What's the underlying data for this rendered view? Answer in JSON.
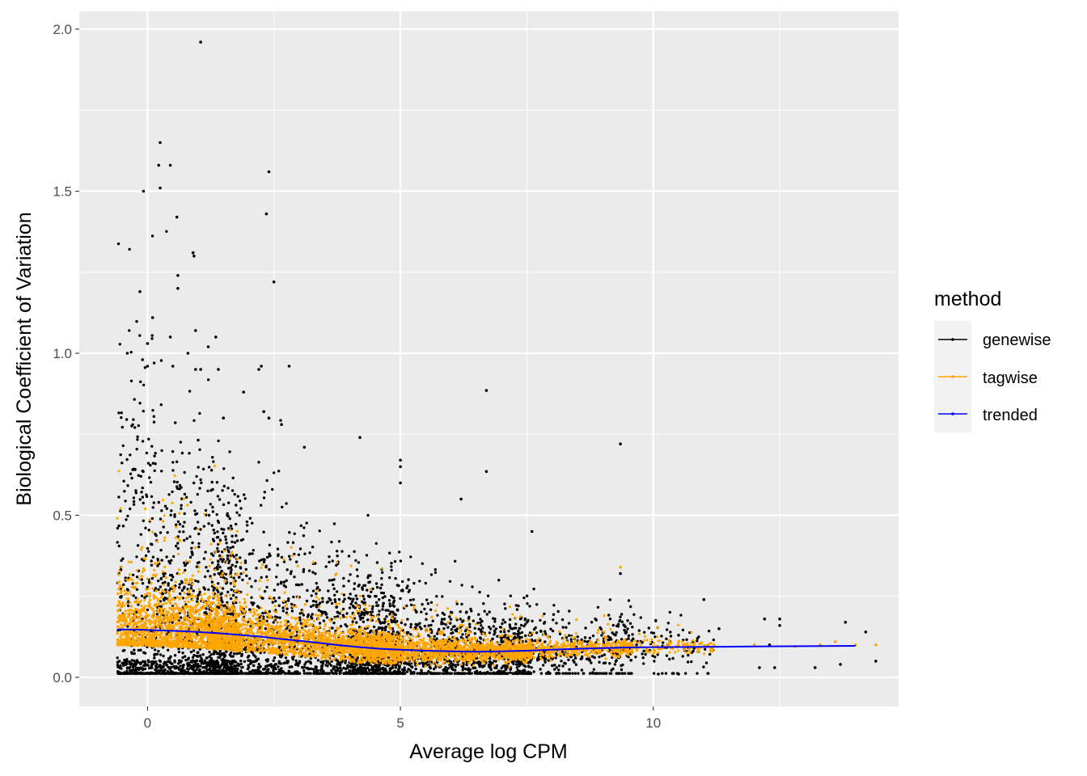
{
  "chart_data": {
    "type": "scatter",
    "title": "",
    "xlabel": "Average log CPM",
    "ylabel": "Biological Coefficient of Variation",
    "xlim": [
      -1.35,
      14.85
    ],
    "ylim": [
      -0.09,
      2.055
    ],
    "x_ticks": [
      0,
      5,
      10
    ],
    "x_tick_labels": [
      "0",
      "5",
      "10"
    ],
    "y_ticks": [
      0.0,
      0.5,
      1.0,
      1.5,
      2.0
    ],
    "y_tick_labels": [
      "0.0",
      "0.5",
      "1.0",
      "1.5",
      "2.0"
    ],
    "grid": true,
    "legend": {
      "title": "method",
      "placement": "right",
      "entries": [
        "genewise",
        "tagwise",
        "trended"
      ]
    },
    "colors": {
      "genewise": "#000000",
      "tagwise": "#FFA500",
      "trended": "#0000FF",
      "panel_background": "#EBEBEB",
      "grid": "#FFFFFF"
    },
    "series": [
      {
        "name": "genewise",
        "kind": "points",
        "note_points": [
          [
            1.05,
            1.96
          ],
          [
            0.25,
            1.65
          ],
          [
            0.22,
            1.58
          ],
          [
            0.45,
            1.58
          ],
          [
            0.25,
            1.51
          ],
          [
            -0.08,
            1.5
          ],
          [
            2.4,
            1.56
          ],
          [
            0.58,
            1.42
          ],
          [
            2.35,
            1.43
          ],
          [
            0.9,
            1.31
          ],
          [
            0.92,
            1.3
          ],
          [
            0.6,
            1.24
          ],
          [
            2.5,
            1.22
          ],
          [
            -0.15,
            1.19
          ],
          [
            0.6,
            1.2
          ],
          [
            0.1,
            1.11
          ],
          [
            0.95,
            1.07
          ],
          [
            1.35,
            1.05
          ],
          [
            0.45,
            1.05
          ],
          [
            0.0,
            1.03
          ],
          [
            -0.4,
            1.0
          ],
          [
            0.8,
            1.0
          ],
          [
            1.2,
            1.02
          ],
          [
            -0.1,
            0.98
          ],
          [
            0.5,
            0.96
          ],
          [
            0.0,
            0.96
          ],
          [
            0.95,
            0.95
          ],
          [
            1.05,
            0.95
          ],
          [
            1.4,
            0.95
          ],
          [
            2.2,
            0.95
          ],
          [
            2.25,
            0.96
          ],
          [
            2.8,
            0.96
          ],
          [
            1.5,
            0.8
          ],
          [
            2.3,
            0.82
          ],
          [
            2.4,
            0.8
          ],
          [
            1.9,
            0.88
          ],
          [
            2.65,
            0.78
          ],
          [
            3.1,
            0.71
          ],
          [
            4.2,
            0.74
          ],
          [
            5.0,
            0.67
          ],
          [
            5.0,
            0.65
          ],
          [
            5.0,
            0.6
          ],
          [
            6.7,
            0.885
          ],
          [
            6.7,
            0.635
          ],
          [
            9.35,
            0.72
          ],
          [
            9.35,
            0.32
          ],
          [
            6.2,
            0.55
          ],
          [
            7.6,
            0.45
          ],
          [
            12.5,
            0.18
          ],
          [
            12.5,
            0.16
          ],
          [
            12.2,
            0.18
          ],
          [
            12.3,
            0.1
          ],
          [
            12.1,
            0.03
          ],
          [
            12.4,
            0.03
          ],
          [
            13.2,
            0.03
          ],
          [
            13.7,
            0.04
          ],
          [
            13.8,
            0.17
          ],
          [
            14.2,
            0.14
          ],
          [
            14.4,
            0.05
          ],
          [
            11.0,
            0.24
          ],
          [
            10.9,
            0.08
          ],
          [
            10.5,
            0.13
          ],
          [
            11.3,
            0.15
          ],
          [
            10.5,
            0.01
          ],
          [
            10.1,
            0.01
          ]
        ]
      },
      {
        "name": "tagwise",
        "kind": "points",
        "note_points": [
          [
            9.35,
            0.34
          ],
          [
            13.6,
            0.11
          ],
          [
            14.0,
            0.1
          ],
          [
            14.4,
            0.1
          ],
          [
            12.8,
            0.095
          ],
          [
            12.0,
            0.1
          ],
          [
            11.2,
            0.1
          ],
          [
            13.3,
            0.1
          ],
          [
            10.8,
            0.1
          ]
        ]
      },
      {
        "name": "trended",
        "kind": "line",
        "x": [
          -0.6,
          -0.2,
          0.2,
          0.6,
          1.0,
          1.4,
          1.8,
          2.2,
          2.6,
          3.0,
          3.4,
          3.8,
          4.2,
          4.6,
          5.0,
          5.5,
          6.0,
          6.5,
          7.0,
          7.5,
          8.0,
          8.5,
          9.0,
          9.5,
          10.0,
          11.0,
          12.0,
          13.0,
          14.0
        ],
        "y": [
          0.148,
          0.147,
          0.145,
          0.143,
          0.14,
          0.136,
          0.131,
          0.126,
          0.119,
          0.113,
          0.106,
          0.099,
          0.093,
          0.088,
          0.085,
          0.082,
          0.08,
          0.079,
          0.08,
          0.082,
          0.085,
          0.088,
          0.09,
          0.092,
          0.093,
          0.094,
          0.095,
          0.096,
          0.097
        ]
      }
    ]
  }
}
